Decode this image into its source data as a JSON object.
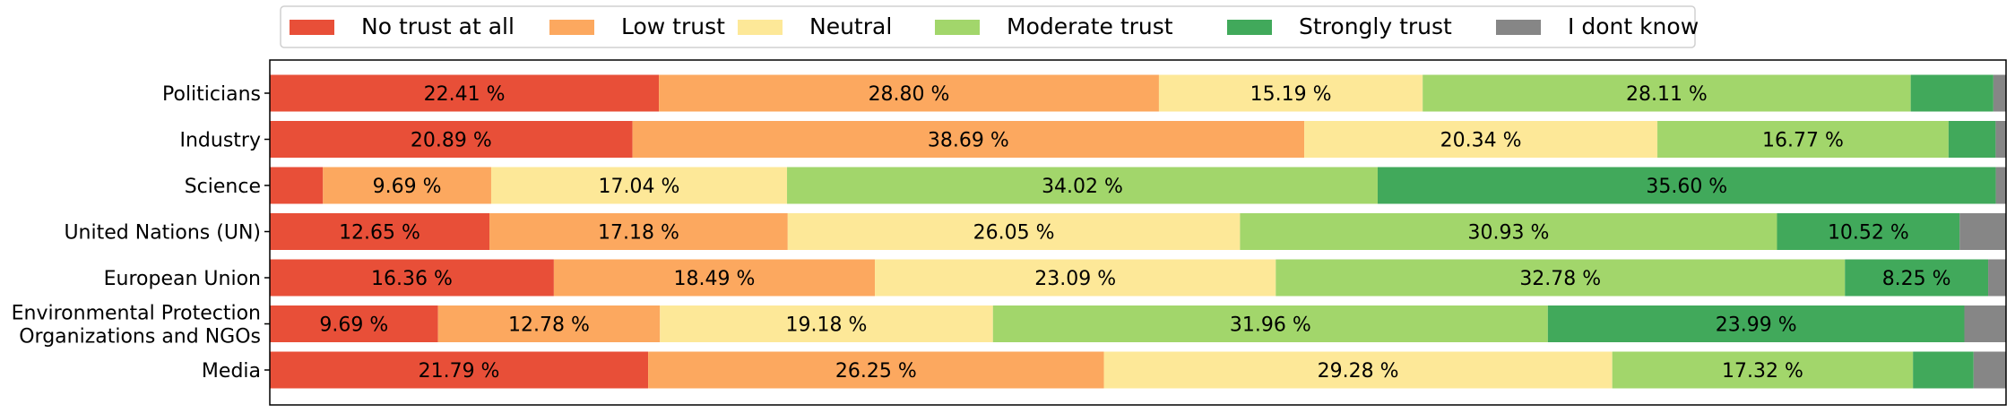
{
  "chart_data": {
    "type": "bar",
    "orientation": "horizontal",
    "stacked": true,
    "title": "",
    "xlabel": "",
    "ylabel": "",
    "xlim": [
      0,
      100
    ],
    "grid": false,
    "legend_placement": "top-left",
    "value_label_suffix": " %",
    "categories": [
      "Politicians",
      "Industry",
      "Science",
      "United Nations (UN)",
      "European Union",
      "Environmental Protection\nOrganizations and NGOs",
      "Media"
    ],
    "series": [
      {
        "name": "No trust at all",
        "color": "#e84f38",
        "values": [
          22.41,
          20.89,
          3.06,
          12.65,
          16.36,
          9.69,
          21.79
        ]
      },
      {
        "name": "Low trust",
        "color": "#fca85f",
        "values": [
          28.8,
          38.69,
          9.69,
          17.18,
          18.49,
          12.78,
          26.25
        ]
      },
      {
        "name": "Neutral",
        "color": "#fde898",
        "values": [
          15.19,
          20.34,
          17.04,
          26.05,
          23.09,
          19.18,
          29.28
        ]
      },
      {
        "name": "Moderate trust",
        "color": "#a2d66b",
        "values": [
          28.11,
          16.77,
          34.02,
          30.93,
          32.78,
          31.96,
          17.32
        ]
      },
      {
        "name": "Strongly trust",
        "color": "#41a95b",
        "values": [
          4.76,
          2.71,
          35.6,
          10.52,
          8.25,
          23.99,
          3.49
        ]
      },
      {
        "name": "I dont know",
        "color": "#868686",
        "values": [
          0.73,
          0.6,
          0.59,
          2.67,
          1.03,
          2.4,
          1.87
        ]
      }
    ],
    "label_min_value": 8
  }
}
